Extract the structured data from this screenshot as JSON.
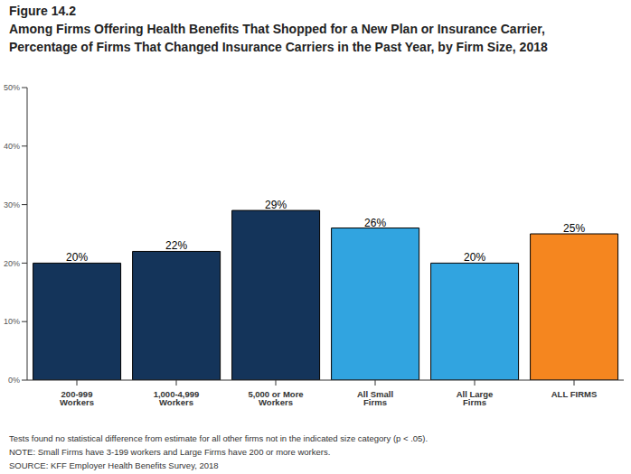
{
  "chart_data": {
    "type": "bar",
    "title": "Figure 14.2",
    "subtitle": [
      "Among Firms Offering Health Benefits That Shopped for a New Plan or Insurance Carrier,",
      "Percentage of Firms That Changed Insurance Carriers in the Past Year, by Firm Size, 2018"
    ],
    "categories": [
      "200-999 Workers",
      "1,000-4,999 Workers",
      "5,000 or More Workers",
      "All Small Firms",
      "All Large Firms",
      "ALL FIRMS"
    ],
    "values": [
      20,
      22,
      29,
      26,
      20,
      25
    ],
    "value_labels": [
      "20%",
      "22%",
      "29%",
      "26%",
      "20%",
      "25%"
    ],
    "colors": [
      "#14345a",
      "#14345a",
      "#14345a",
      "#31a4e0",
      "#31a4e0",
      "#f5861f"
    ],
    "ylim": [
      0,
      50
    ],
    "yticks": [
      {
        "value": 0,
        "label": "0%"
      },
      {
        "value": 10,
        "label": "10%"
      },
      {
        "value": 20,
        "label": "20%"
      },
      {
        "value": 30,
        "label": "30%"
      },
      {
        "value": 40,
        "label": "40%"
      },
      {
        "value": 50,
        "label": "50%"
      }
    ],
    "grid": false,
    "data_labels": true,
    "notes": [
      "Tests found no statistical difference from estimate for all other firms not in the indicated size category (p < .05).",
      "NOTE: Small Firms have 3-199 workers and Large Firms have 200 or more workers.",
      "SOURCE: KFF Employer Health Benefits Survey, 2018"
    ]
  }
}
